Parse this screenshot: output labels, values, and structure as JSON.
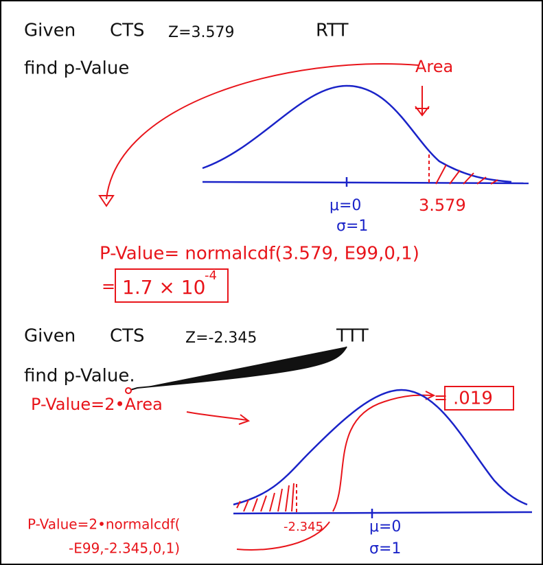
{
  "section1": {
    "given": "Given",
    "statistic": "CTS",
    "z": "Z=3.579",
    "test": "RTT",
    "prompt": "find p-Value",
    "area_label": "Area",
    "mean": "μ=0",
    "sd": "σ=1",
    "cutoff": "3.579",
    "formula": "P-Value= normalcdf(3.579, E99,0,1)",
    "result_prefix": "=",
    "result_base": "1.7 × 10",
    "result_exponent": "-4"
  },
  "section2": {
    "given": "Given",
    "statistic": "CTS",
    "z": "Z=-2.345",
    "test": "TTT",
    "prompt": "find p-Value.",
    "relation": "P-Value=2•Area",
    "result_prefix": "=",
    "result": ".019",
    "formula_line1": "P-Value=2•normalcdf(",
    "formula_line2": "-E99,-2.345,0,1)",
    "cutoff": "-2.345",
    "mean": "μ=0",
    "sd": "σ=1"
  }
}
